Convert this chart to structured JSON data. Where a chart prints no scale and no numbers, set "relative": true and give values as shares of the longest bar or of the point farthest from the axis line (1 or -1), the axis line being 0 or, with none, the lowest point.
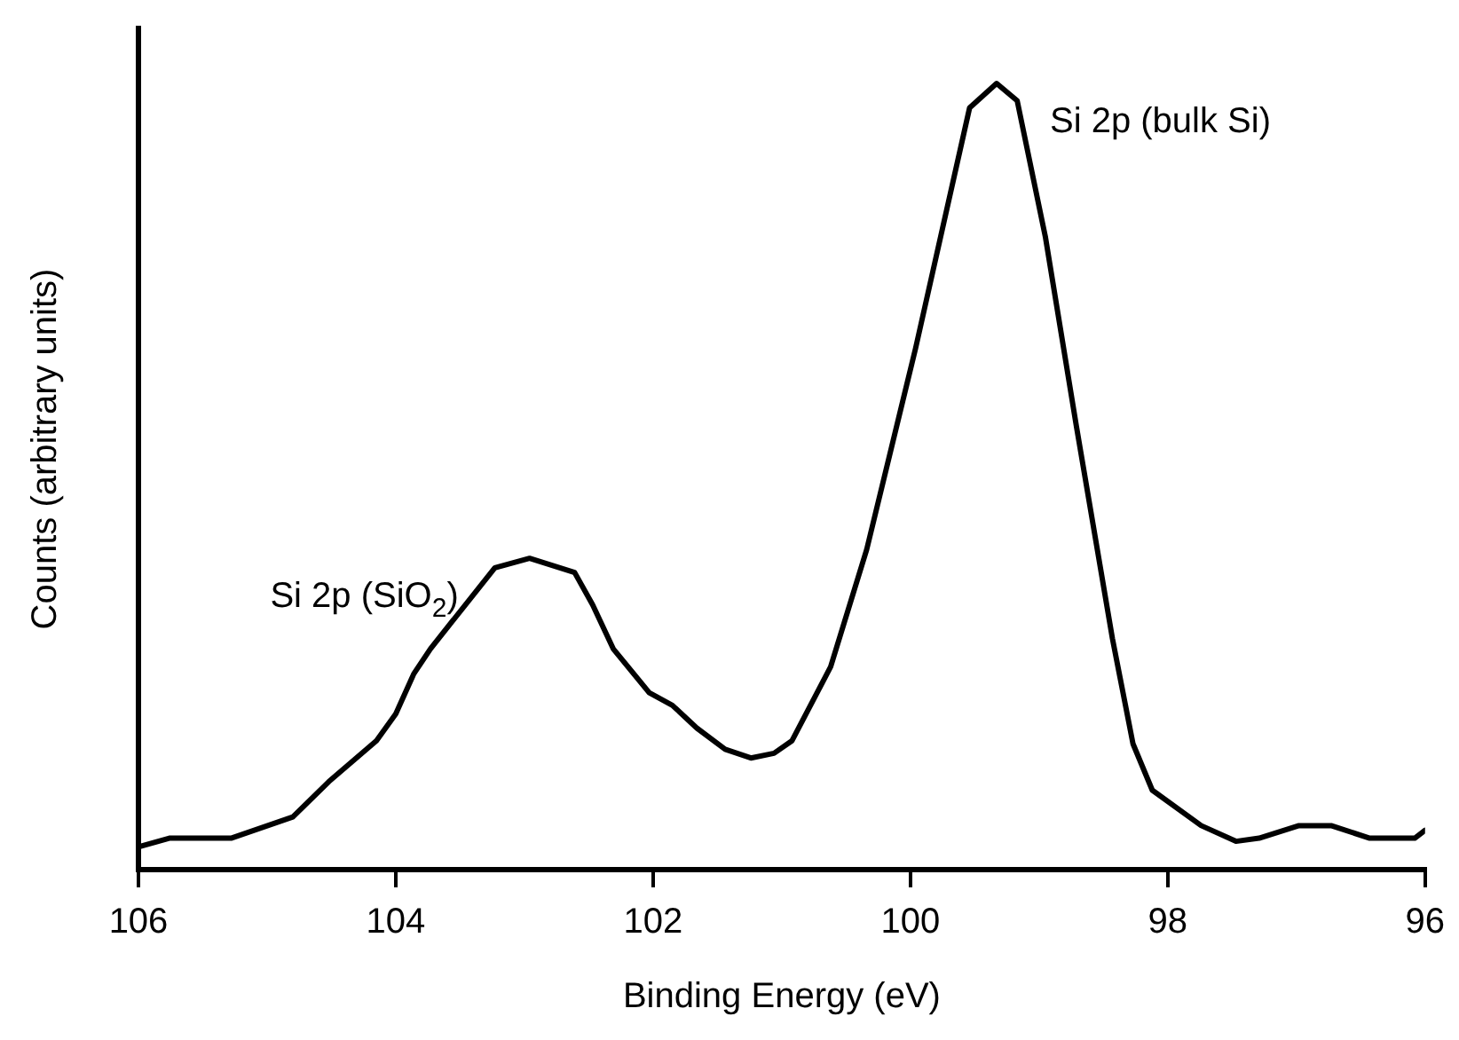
{
  "chart_data": {
    "type": "line",
    "xlabel": "Binding Energy (eV)",
    "ylabel": "Counts (arbitrary units)",
    "relative": true,
    "x": [
      106,
      105.76,
      105.28,
      104.8,
      104.52,
      104.15,
      104.0,
      103.86,
      103.73,
      103.23,
      102.96,
      102.61,
      102.47,
      102.31,
      102.03,
      101.85,
      101.66,
      101.44,
      101.24,
      101.06,
      100.92,
      100.62,
      100.34,
      99.96,
      99.54,
      99.33,
      99.17,
      98.95,
      98.71,
      98.43,
      98.27,
      98.12,
      97.74,
      97.47,
      97.29,
      96.98,
      96.73,
      96.43,
      96.08,
      96
    ],
    "series": [
      {
        "color": "#000000",
        "values": [
          0.029,
          0.04,
          0.04,
          0.067,
          0.112,
          0.164,
          0.198,
          0.249,
          0.281,
          0.384,
          0.396,
          0.378,
          0.337,
          0.281,
          0.225,
          0.209,
          0.18,
          0.153,
          0.142,
          0.148,
          0.164,
          0.258,
          0.407,
          0.663,
          0.969,
          1,
          0.978,
          0.804,
          0.564,
          0.294,
          0.16,
          0.101,
          0.056,
          0.036,
          0.04,
          0.056,
          0.056,
          0.04,
          0.04,
          0.05
        ]
      }
    ],
    "xlim": [
      106,
      96
    ],
    "xticks": [
      106,
      104,
      102,
      100,
      98,
      96
    ],
    "grid": false,
    "legend": false,
    "marker": "none",
    "line_style": "solid",
    "annotations": [
      {
        "text": "Si 2p (SiO$_{2}$)",
        "x": 102.96,
        "y": 0.396
      },
      {
        "text": "Si 2p (bulk Si)",
        "x": 99.33,
        "y": 1
      }
    ]
  }
}
